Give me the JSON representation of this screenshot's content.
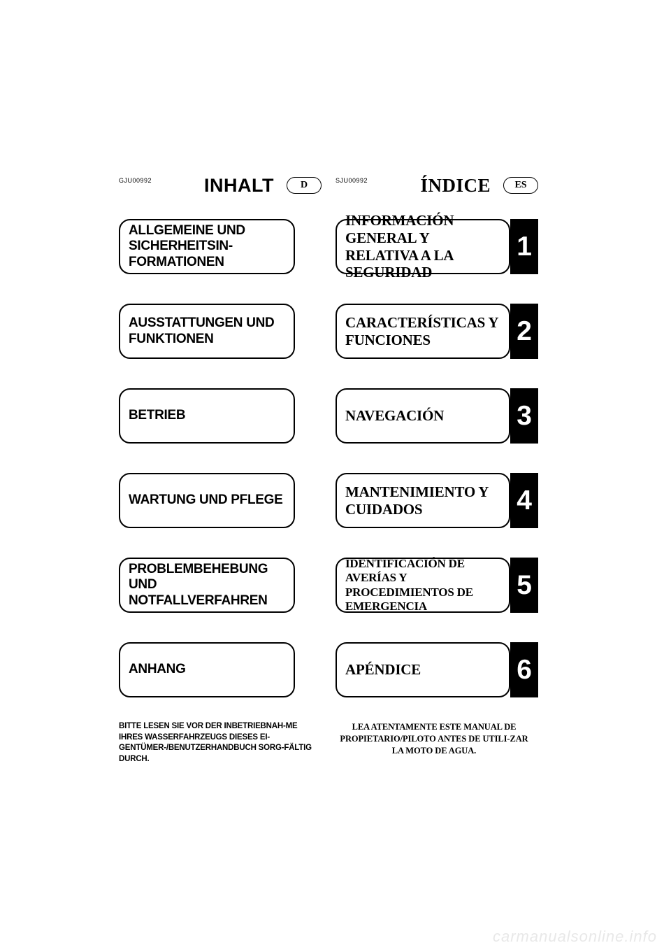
{
  "columns": [
    {
      "code": "GJU00992",
      "title": "INHALT",
      "title_serif": false,
      "lang": "D",
      "font": "sans",
      "sections": [
        {
          "label": "ALLGEMEINE UND SICHERHEITSIN-FORMATIONEN",
          "small": false
        },
        {
          "label": "AUSSTATTUNGEN UND FUNKTIONEN",
          "small": false
        },
        {
          "label": "BETRIEB",
          "small": false
        },
        {
          "label": "WARTUNG UND PFLEGE",
          "small": false
        },
        {
          "label": "PROBLEMBEHEBUNG UND NOTFALLVERFAHREN",
          "small": false
        },
        {
          "label": "ANHANG",
          "small": false
        }
      ],
      "footer": "BITTE LESEN SIE VOR DER INBETRIEBNAH-ME IHRES WASSERFAHRZEUGS DIESES EI-GENTÜMER-/BENUTZERHANDBUCH SORG-FÄLTIG DURCH."
    },
    {
      "code": "SJU00992",
      "title": "ÍNDICE",
      "title_serif": true,
      "lang": "ES",
      "font": "serif",
      "sections": [
        {
          "label": "INFORMACIÓN GENERAL Y RELATIVA A LA SEGURIDAD",
          "small": false
        },
        {
          "label": "CARACTERÍSTICAS Y FUNCIONES",
          "small": false
        },
        {
          "label": "NAVEGACIÓN",
          "small": false
        },
        {
          "label": "MANTENIMIENTO Y CUIDADOS",
          "small": false
        },
        {
          "label": "IDENTIFICACIÓN DE AVERÍAS Y PROCEDIMIENTOS DE EMERGENCIA",
          "small": true
        },
        {
          "label": "APÉNDICE",
          "small": false
        }
      ],
      "footer": "LEA ATENTAMENTE ESTE MANUAL DE PROPIETARIO/PILOTO ANTES DE UTILI-ZAR LA MOTO DE AGUA."
    }
  ],
  "numbers": [
    "1",
    "2",
    "3",
    "4",
    "5",
    "6"
  ],
  "watermark": "carmanualsonline.info"
}
